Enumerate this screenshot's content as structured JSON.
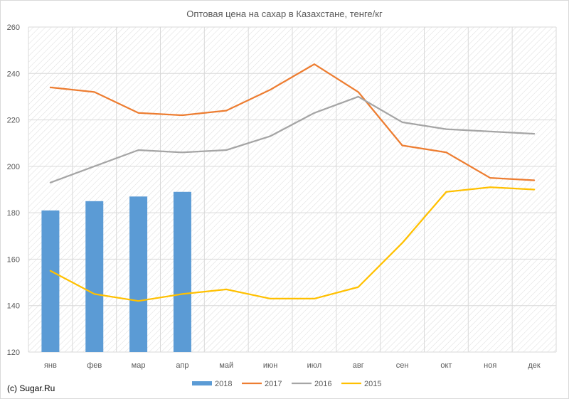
{
  "chart_data": {
    "type": "bar+line",
    "title": "Оптовая цена на сахар в Казахстане, тенге/кг",
    "categories": [
      "янв",
      "фев",
      "мар",
      "апр",
      "май",
      "июн",
      "июл",
      "авг",
      "сен",
      "окт",
      "ноя",
      "дек"
    ],
    "ylim": [
      120,
      260
    ],
    "yticks": [
      120,
      140,
      160,
      180,
      200,
      220,
      240,
      260
    ],
    "grid": true,
    "legend_position": "bottom",
    "series": [
      {
        "name": "2018",
        "kind": "bar",
        "color": "#5B9BD5",
        "values": [
          181,
          185,
          187,
          189,
          null,
          null,
          null,
          null,
          null,
          null,
          null,
          null
        ]
      },
      {
        "name": "2017",
        "kind": "line",
        "color": "#ED7D31",
        "values": [
          234,
          232,
          223,
          222,
          224,
          233,
          244,
          232,
          209,
          206,
          195,
          194
        ]
      },
      {
        "name": "2016",
        "kind": "line",
        "color": "#A5A5A5",
        "values": [
          193,
          200,
          207,
          206,
          207,
          213,
          223,
          230,
          219,
          216,
          215,
          214
        ]
      },
      {
        "name": "2015",
        "kind": "line",
        "color": "#FFC000",
        "values": [
          155,
          145,
          142,
          145,
          147,
          143,
          143,
          148,
          167,
          189,
          191,
          190
        ]
      }
    ]
  },
  "credit": "(c) Sugar.Ru"
}
